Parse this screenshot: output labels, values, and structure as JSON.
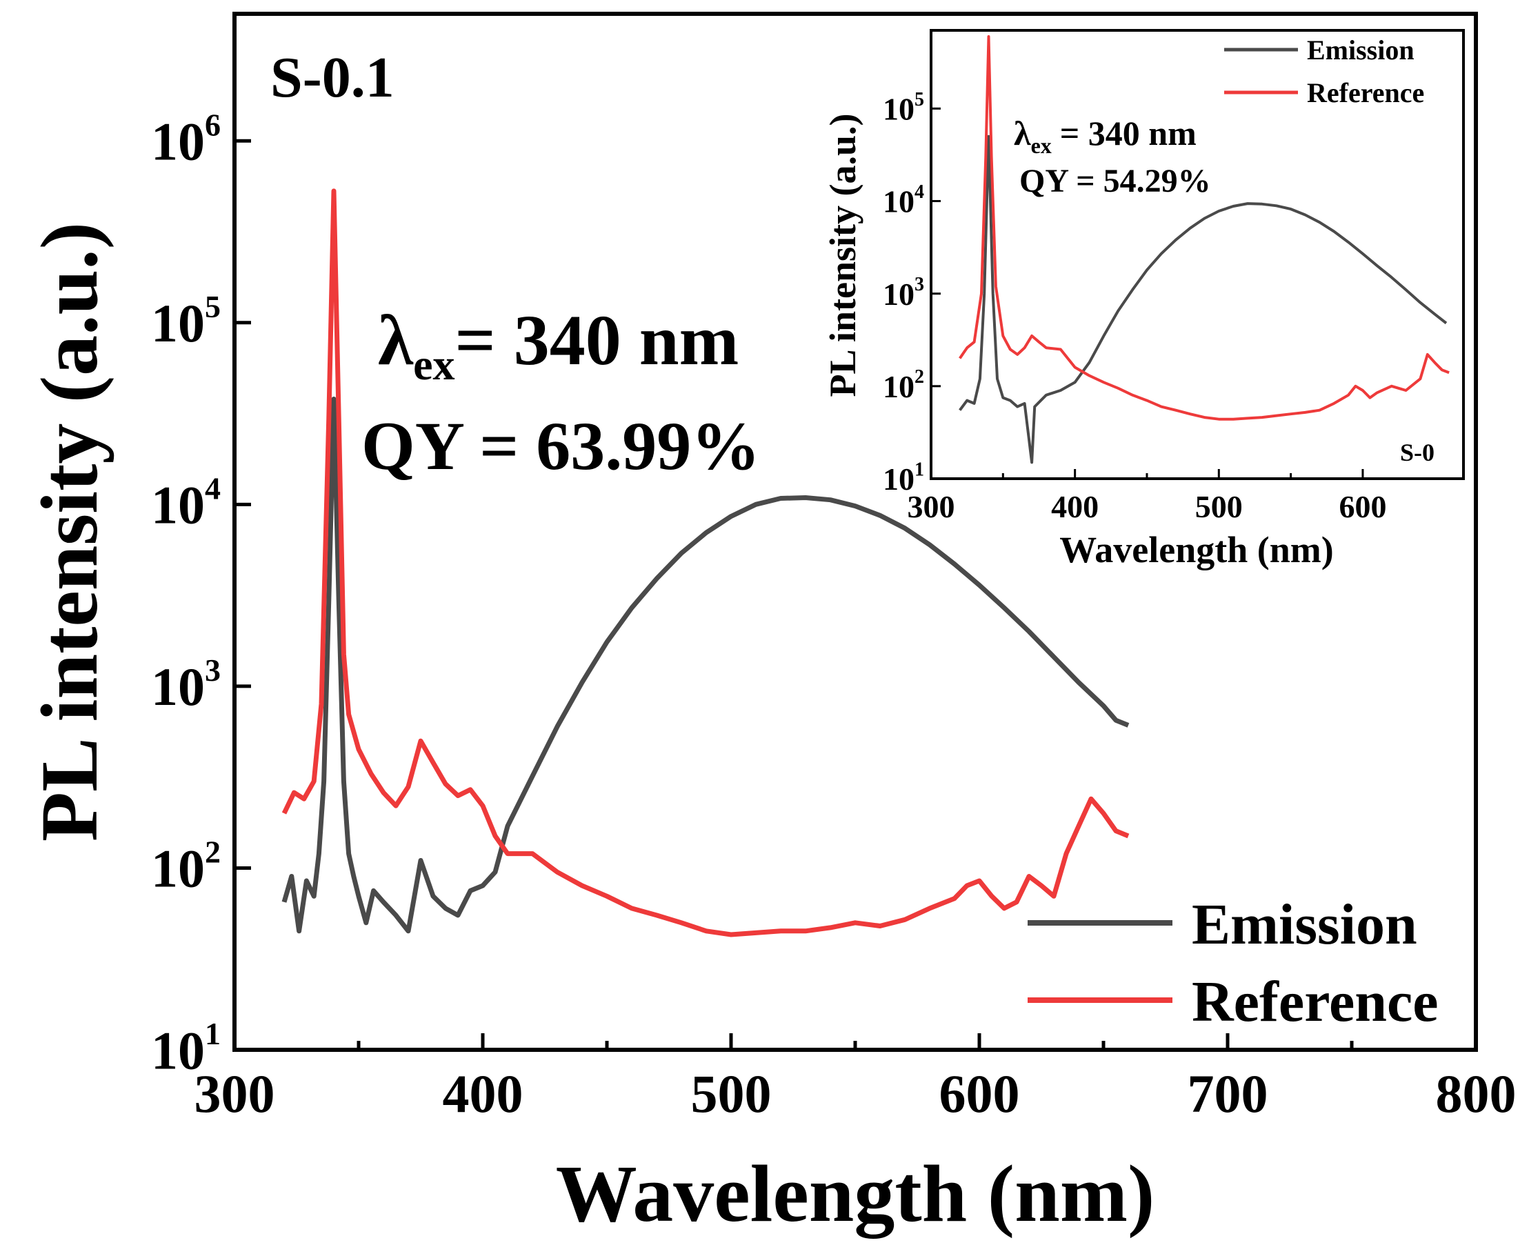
{
  "chart_data": [
    {
      "id": "main",
      "type": "line",
      "yscale": "log",
      "xlabel": "Wavelength (nm)",
      "ylabel": "PL intensity (a.u.)",
      "xlim": [
        300,
        800
      ],
      "ylim": [
        10,
        5000000
      ],
      "x_ticks": [
        300,
        400,
        500,
        600,
        700,
        800
      ],
      "x_tick_labels": [
        "300",
        "400",
        "500",
        "600",
        "700",
        "800"
      ],
      "y_ticks": [
        10,
        100,
        1000,
        10000,
        100000,
        1000000
      ],
      "y_tick_labels": [
        {
          "base": "10",
          "exp": "1"
        },
        {
          "base": "10",
          "exp": "2"
        },
        {
          "base": "10",
          "exp": "3"
        },
        {
          "base": "10",
          "exp": "4"
        },
        {
          "base": "10",
          "exp": "5"
        },
        {
          "base": "10",
          "exp": "6"
        }
      ],
      "sample_label": "S-0.1",
      "annotation_line1": {
        "symbol": "λ",
        "subscript": "ex",
        "rest": "= 340 nm"
      },
      "annotation_line2": "QY = 63.99%",
      "legend_position": "bottom-right",
      "series": [
        {
          "name": "Emission",
          "color": "#4a4a4a",
          "points": [
            [
              320,
              65
            ],
            [
              323,
              90
            ],
            [
              326,
              45
            ],
            [
              329,
              85
            ],
            [
              332,
              70
            ],
            [
              334,
              120
            ],
            [
              336,
              300
            ],
            [
              338,
              3000
            ],
            [
              340,
              38000
            ],
            [
              342,
              3000
            ],
            [
              344,
              300
            ],
            [
              346,
              120
            ],
            [
              348,
              90
            ],
            [
              350,
              70
            ],
            [
              353,
              50
            ],
            [
              356,
              75
            ],
            [
              360,
              65
            ],
            [
              365,
              55
            ],
            [
              370,
              45
            ],
            [
              375,
              110
            ],
            [
              380,
              70
            ],
            [
              385,
              60
            ],
            [
              390,
              55
            ],
            [
              395,
              75
            ],
            [
              400,
              80
            ],
            [
              405,
              95
            ],
            [
              410,
              170
            ],
            [
              420,
              320
            ],
            [
              430,
              600
            ],
            [
              440,
              1050
            ],
            [
              450,
              1750
            ],
            [
              460,
              2700
            ],
            [
              470,
              3900
            ],
            [
              480,
              5400
            ],
            [
              490,
              7000
            ],
            [
              500,
              8600
            ],
            [
              510,
              10000
            ],
            [
              520,
              10800
            ],
            [
              530,
              10900
            ],
            [
              540,
              10600
            ],
            [
              550,
              9800
            ],
            [
              560,
              8700
            ],
            [
              570,
              7400
            ],
            [
              580,
              6000
            ],
            [
              590,
              4700
            ],
            [
              600,
              3600
            ],
            [
              610,
              2700
            ],
            [
              620,
              2000
            ],
            [
              630,
              1450
            ],
            [
              640,
              1050
            ],
            [
              650,
              780
            ],
            [
              655,
              650
            ],
            [
              660,
              610
            ]
          ]
        },
        {
          "name": "Reference",
          "color": "#ee3a3a",
          "points": [
            [
              320,
              200
            ],
            [
              324,
              260
            ],
            [
              328,
              240
            ],
            [
              332,
              300
            ],
            [
              335,
              800
            ],
            [
              338,
              30000
            ],
            [
              340,
              530000
            ],
            [
              342,
              30000
            ],
            [
              344,
              1500
            ],
            [
              346,
              700
            ],
            [
              350,
              450
            ],
            [
              355,
              330
            ],
            [
              360,
              260
            ],
            [
              365,
              220
            ],
            [
              370,
              280
            ],
            [
              375,
              500
            ],
            [
              380,
              380
            ],
            [
              385,
              290
            ],
            [
              390,
              250
            ],
            [
              395,
              270
            ],
            [
              400,
              220
            ],
            [
              405,
              150
            ],
            [
              410,
              120
            ],
            [
              420,
              120
            ],
            [
              430,
              95
            ],
            [
              440,
              80
            ],
            [
              450,
              70
            ],
            [
              460,
              60
            ],
            [
              470,
              55
            ],
            [
              480,
              50
            ],
            [
              490,
              45
            ],
            [
              500,
              43
            ],
            [
              510,
              44
            ],
            [
              520,
              45
            ],
            [
              530,
              45
            ],
            [
              540,
              47
            ],
            [
              550,
              50
            ],
            [
              560,
              48
            ],
            [
              570,
              52
            ],
            [
              580,
              60
            ],
            [
              590,
              68
            ],
            [
              595,
              80
            ],
            [
              600,
              85
            ],
            [
              605,
              70
            ],
            [
              610,
              60
            ],
            [
              615,
              65
            ],
            [
              620,
              90
            ],
            [
              625,
              80
            ],
            [
              630,
              70
            ],
            [
              635,
              120
            ],
            [
              640,
              170
            ],
            [
              645,
              240
            ],
            [
              650,
              200
            ],
            [
              655,
              160
            ],
            [
              660,
              150
            ]
          ]
        }
      ]
    },
    {
      "id": "inset",
      "type": "line",
      "yscale": "log",
      "xlabel": "Wavelength (nm)",
      "ylabel": "PL intensity (a.u.)",
      "xlim": [
        300,
        670
      ],
      "ylim": [
        10,
        700000
      ],
      "x_ticks": [
        300,
        400,
        500,
        600
      ],
      "x_tick_labels": [
        "300",
        "400",
        "500",
        "600"
      ],
      "y_ticks": [
        10,
        100,
        1000,
        10000,
        100000
      ],
      "y_tick_labels": [
        {
          "base": "10",
          "exp": "1"
        },
        {
          "base": "10",
          "exp": "2"
        },
        {
          "base": "10",
          "exp": "3"
        },
        {
          "base": "10",
          "exp": "4"
        },
        {
          "base": "10",
          "exp": "5"
        }
      ],
      "sample_label": "S-0",
      "annotation_line1": {
        "symbol": "λ",
        "subscript": "ex",
        "rest": "= 340 nm"
      },
      "annotation_line2": "QY = 54.29%",
      "legend_position": "top-right",
      "series": [
        {
          "name": "Emission",
          "color": "#4a4a4a",
          "points": [
            [
              320,
              55
            ],
            [
              325,
              70
            ],
            [
              330,
              65
            ],
            [
              334,
              120
            ],
            [
              337,
              1000
            ],
            [
              340,
              50000
            ],
            [
              343,
              1000
            ],
            [
              346,
              120
            ],
            [
              350,
              75
            ],
            [
              355,
              70
            ],
            [
              360,
              60
            ],
            [
              365,
              65
            ],
            [
              370,
              15
            ],
            [
              372,
              60
            ],
            [
              380,
              80
            ],
            [
              390,
              90
            ],
            [
              400,
              110
            ],
            [
              410,
              180
            ],
            [
              420,
              350
            ],
            [
              430,
              650
            ],
            [
              440,
              1100
            ],
            [
              450,
              1800
            ],
            [
              460,
              2700
            ],
            [
              470,
              3800
            ],
            [
              480,
              5100
            ],
            [
              490,
              6500
            ],
            [
              500,
              7800
            ],
            [
              510,
              8800
            ],
            [
              520,
              9400
            ],
            [
              530,
              9300
            ],
            [
              540,
              8900
            ],
            [
              550,
              8200
            ],
            [
              560,
              7100
            ],
            [
              570,
              5900
            ],
            [
              580,
              4700
            ],
            [
              590,
              3600
            ],
            [
              600,
              2700
            ],
            [
              610,
              2000
            ],
            [
              620,
              1500
            ],
            [
              630,
              1100
            ],
            [
              640,
              800
            ],
            [
              650,
              600
            ],
            [
              658,
              480
            ]
          ]
        },
        {
          "name": "Reference",
          "color": "#ee3a3a",
          "points": [
            [
              320,
              200
            ],
            [
              325,
              260
            ],
            [
              330,
              300
            ],
            [
              335,
              1000
            ],
            [
              338,
              30000
            ],
            [
              340,
              600000
            ],
            [
              342,
              30000
            ],
            [
              345,
              1200
            ],
            [
              350,
              350
            ],
            [
              355,
              250
            ],
            [
              360,
              220
            ],
            [
              365,
              260
            ],
            [
              370,
              350
            ],
            [
              375,
              300
            ],
            [
              380,
              260
            ],
            [
              390,
              250
            ],
            [
              400,
              160
            ],
            [
              410,
              130
            ],
            [
              420,
              110
            ],
            [
              430,
              95
            ],
            [
              440,
              80
            ],
            [
              450,
              70
            ],
            [
              460,
              60
            ],
            [
              470,
              55
            ],
            [
              480,
              50
            ],
            [
              490,
              46
            ],
            [
              500,
              44
            ],
            [
              510,
              44
            ],
            [
              520,
              45
            ],
            [
              530,
              46
            ],
            [
              540,
              48
            ],
            [
              550,
              50
            ],
            [
              560,
              52
            ],
            [
              570,
              55
            ],
            [
              580,
              65
            ],
            [
              590,
              80
            ],
            [
              595,
              100
            ],
            [
              600,
              90
            ],
            [
              605,
              75
            ],
            [
              610,
              85
            ],
            [
              620,
              100
            ],
            [
              630,
              90
            ],
            [
              640,
              120
            ],
            [
              645,
              220
            ],
            [
              650,
              180
            ],
            [
              655,
              150
            ],
            [
              660,
              140
            ]
          ]
        }
      ]
    }
  ]
}
